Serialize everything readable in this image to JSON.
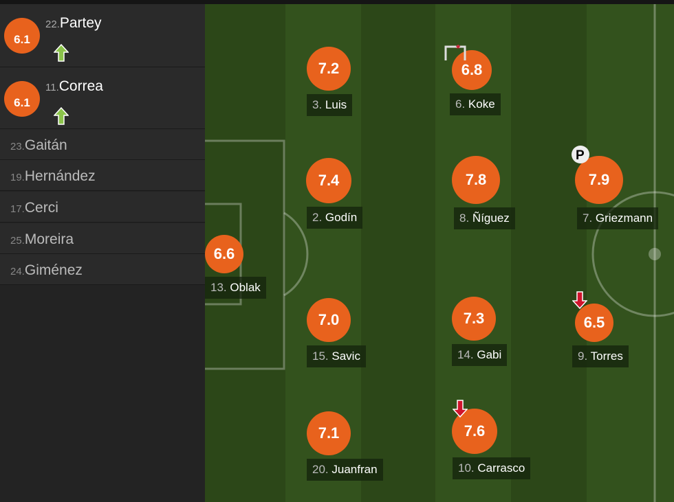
{
  "colors": {
    "rating": "#e8621d",
    "sub_in": "#8bc34a",
    "sub_out": "#d0142c",
    "pitch_dark": "#2c4718",
    "pitch_light": "#33521d"
  },
  "substitutes_in": [
    {
      "number": "22.",
      "name": "Partey",
      "rating": "6.1",
      "icon": "arrow-up-icon"
    },
    {
      "number": "11.",
      "name": "Correa",
      "rating": "6.1",
      "icon": "arrow-up-icon"
    }
  ],
  "bench": [
    {
      "number": "23.",
      "name": "Gaitán"
    },
    {
      "number": "19.",
      "name": "Hernández"
    },
    {
      "number": "17.",
      "name": "Cerci"
    },
    {
      "number": "25.",
      "name": "Moreira"
    },
    {
      "number": "24.",
      "name": "Giménez"
    }
  ],
  "players": [
    {
      "number": "3.",
      "name": "Luis",
      "rating": "7.2"
    },
    {
      "number": "6.",
      "name": "Koke",
      "rating": "6.8",
      "icon": "corner-flag-icon"
    },
    {
      "number": "2.",
      "name": "Godín",
      "rating": "7.4"
    },
    {
      "number": "8.",
      "name": "Ñíguez",
      "rating": "7.8"
    },
    {
      "number": "7.",
      "name": "Griezmann",
      "rating": "7.9",
      "icon": "penalty-ball-icon"
    },
    {
      "number": "13.",
      "name": "Oblak",
      "rating": "6.6"
    },
    {
      "number": "15.",
      "name": "Savic",
      "rating": "7.0"
    },
    {
      "number": "14.",
      "name": "Gabi",
      "rating": "7.3"
    },
    {
      "number": "9.",
      "name": "Torres",
      "rating": "6.5",
      "icon": "sub-out-arrow-icon"
    },
    {
      "number": "20.",
      "name": "Juanfran",
      "rating": "7.1"
    },
    {
      "number": "10.",
      "name": "Carrasco",
      "rating": "7.6",
      "icon": "sub-out-arrow-icon"
    }
  ]
}
